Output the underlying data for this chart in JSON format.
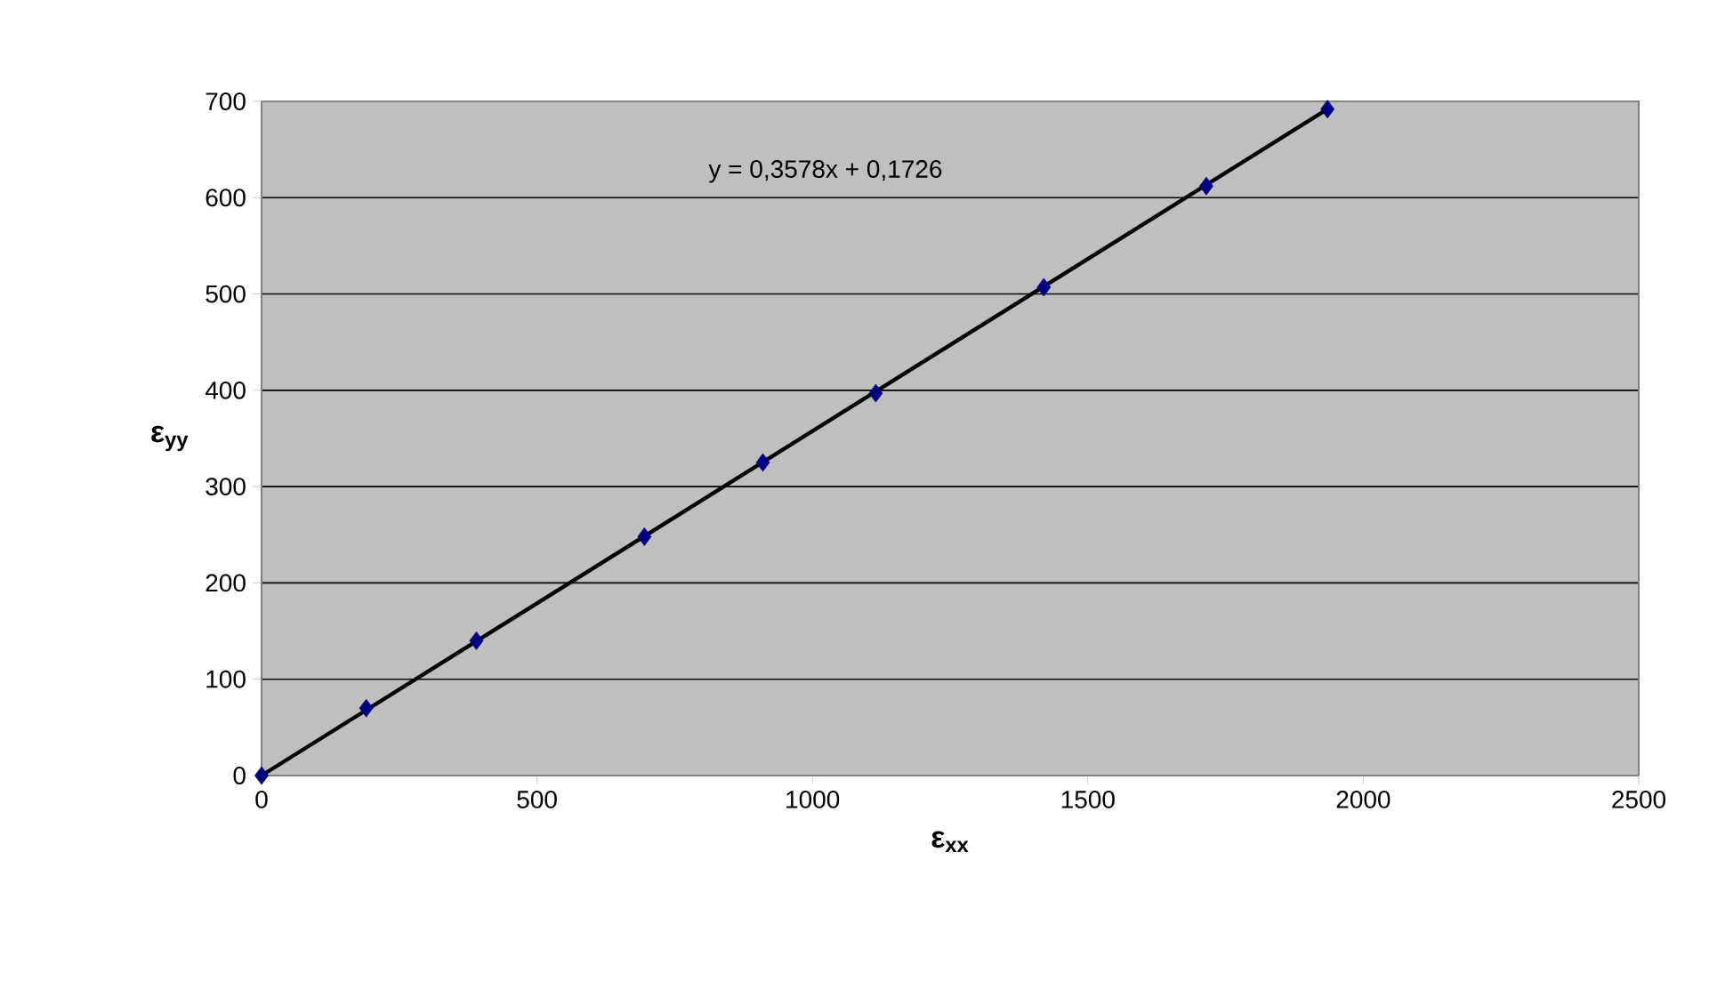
{
  "chart_data": {
    "type": "scatter",
    "xlabel": "ε$_{xx}$",
    "ylabel": "ε$_{yy}$",
    "series": [
      {
        "color": "#000080",
        "marker": "diamond",
        "x": [
          0,
          190,
          390,
          695,
          910,
          1115,
          1420,
          1715,
          1935
        ],
        "values": [
          0,
          70,
          140,
          248,
          325,
          397,
          507,
          612,
          692
        ]
      },
      {
        "type": "line",
        "color": "#000000",
        "marker": "none",
        "line_style": "solid",
        "x": [
          0,
          1935
        ],
        "values": [
          0,
          692
        ]
      }
    ],
    "annotations": [
      "y = 0,3578x + 0,1726"
    ],
    "xlim": [
      0,
      2500
    ],
    "xticks": [
      0,
      500,
      1000,
      1500,
      2000,
      2500
    ],
    "ylim": [
      0,
      700
    ],
    "yticks": [
      0,
      100,
      200,
      300,
      400,
      500,
      600,
      700
    ],
    "grid": "y"
  }
}
